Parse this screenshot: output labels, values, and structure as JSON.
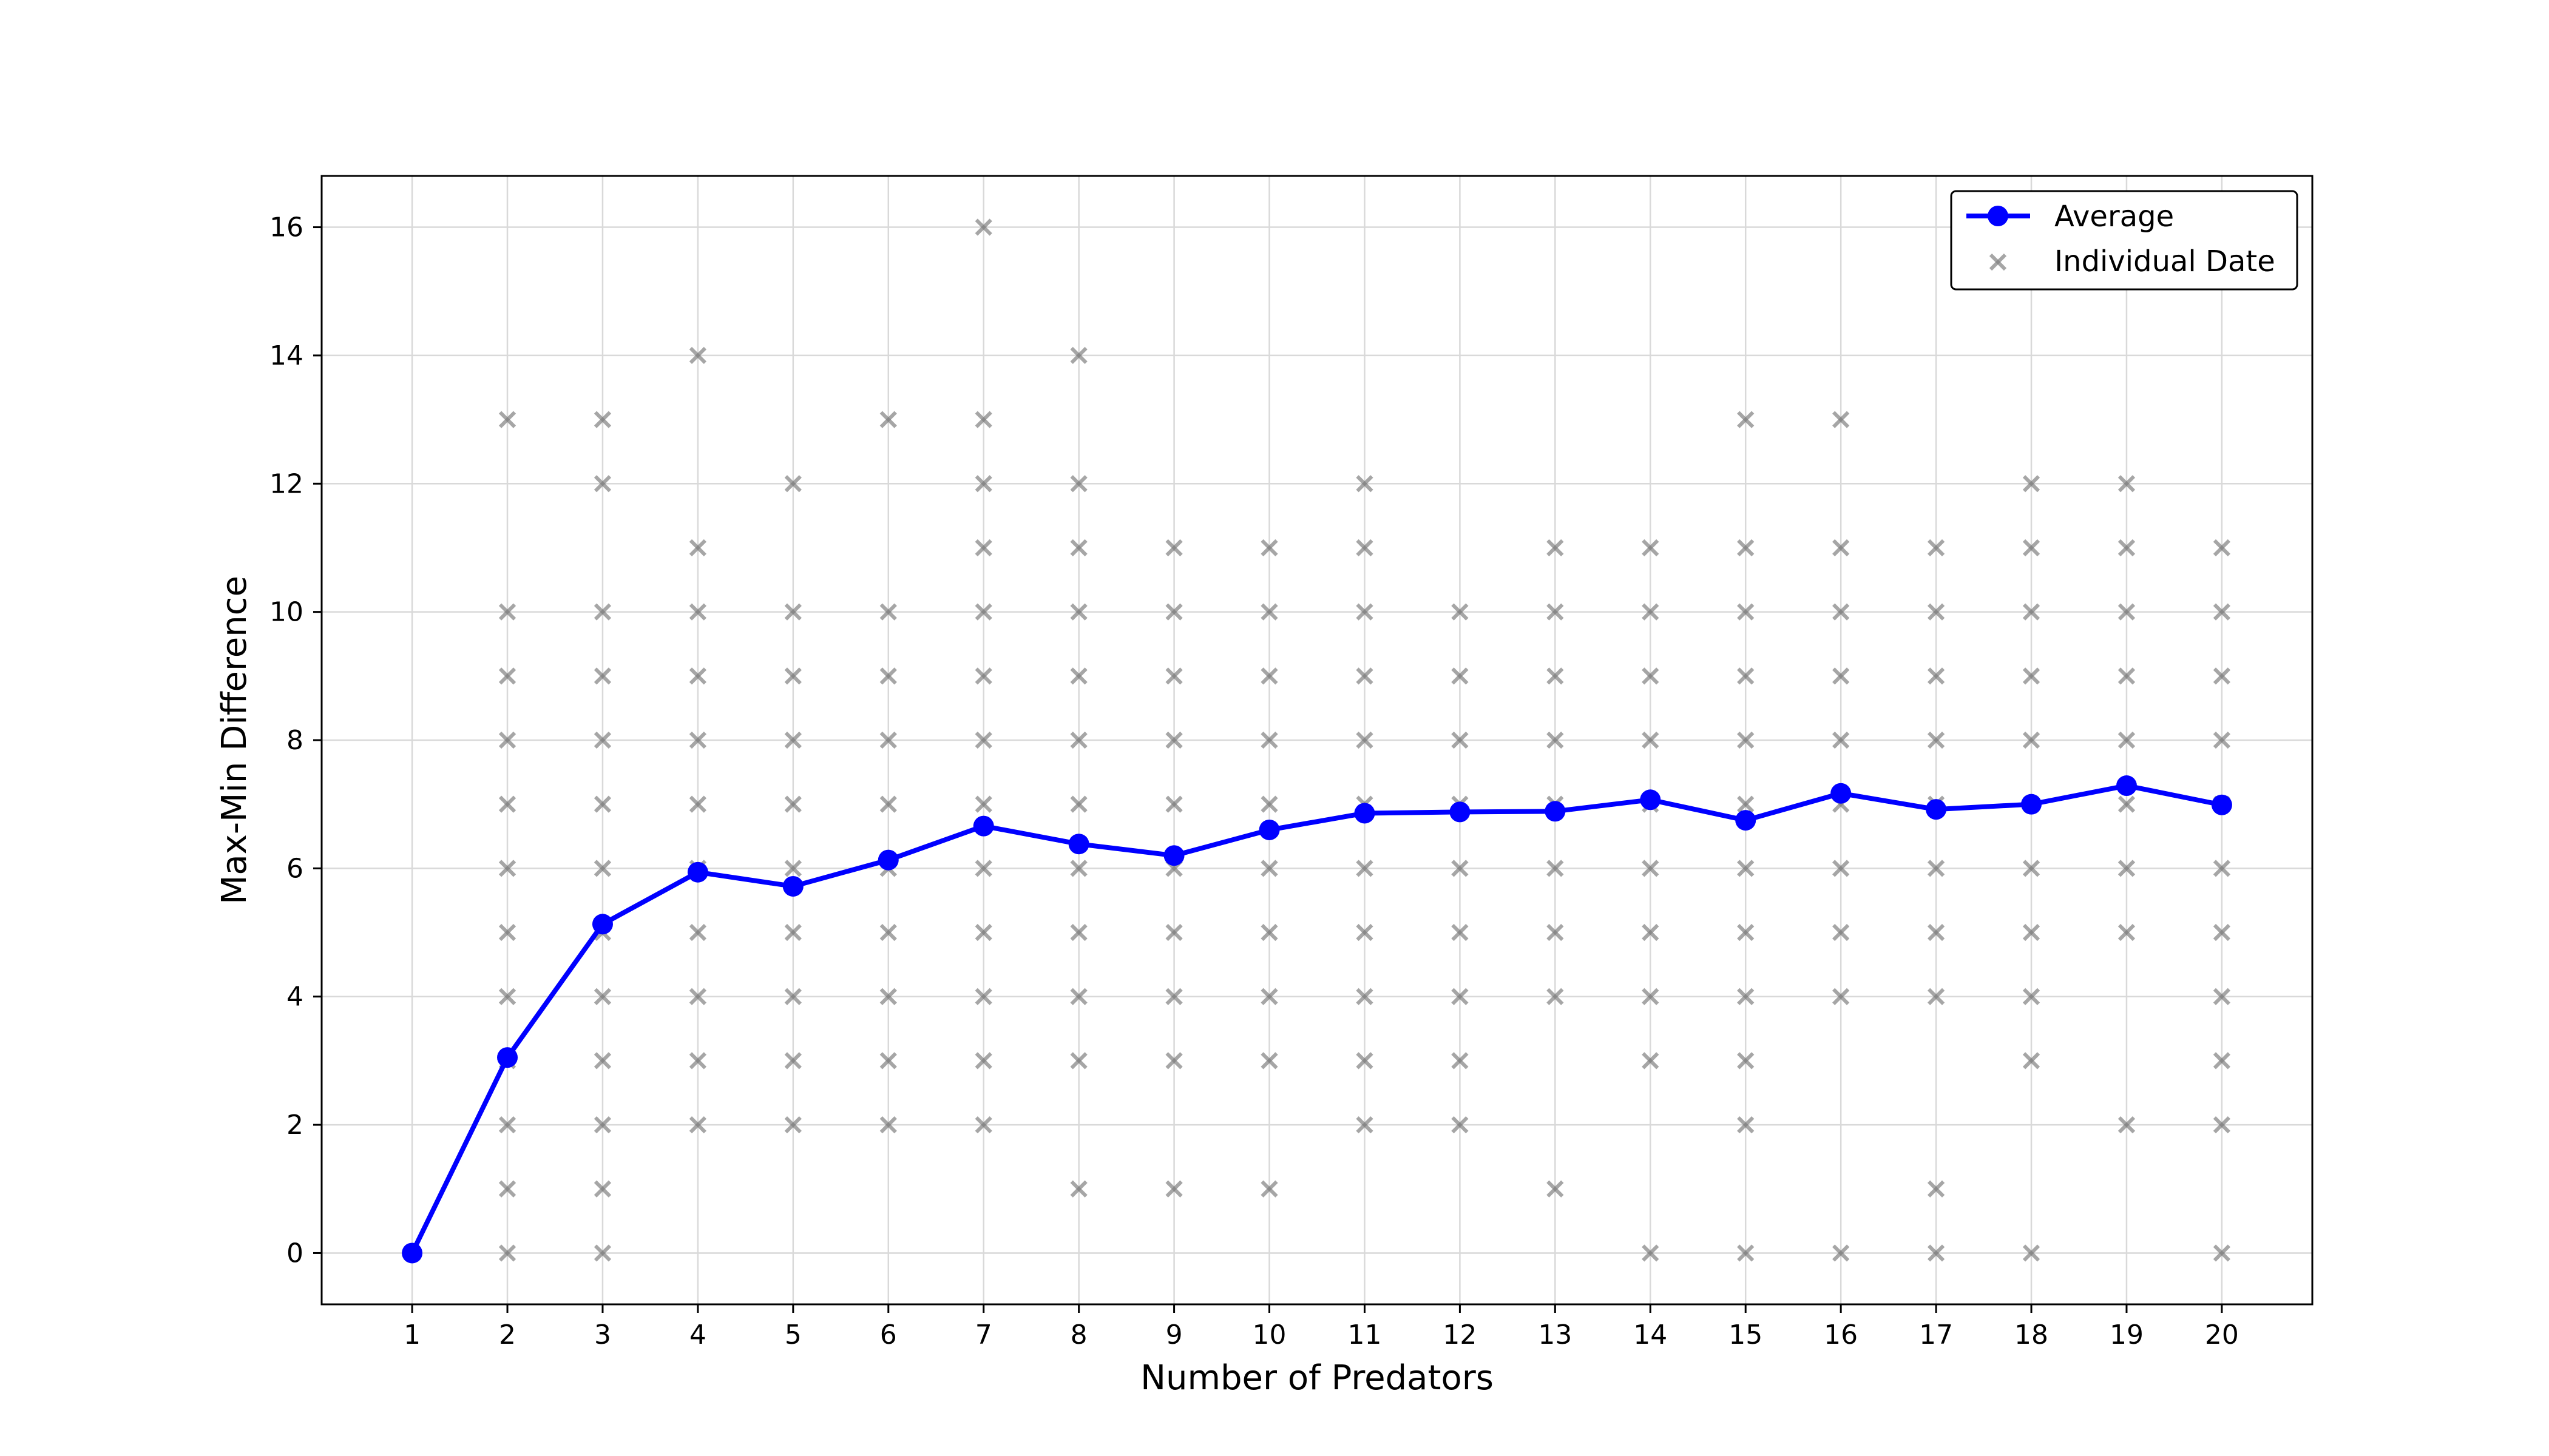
{
  "chart_data": {
    "type": "line",
    "title": "",
    "xlabel": "Number of Predators",
    "ylabel": "Max-Min Difference",
    "x_ticks": [
      1,
      2,
      3,
      4,
      5,
      6,
      7,
      8,
      9,
      10,
      11,
      12,
      13,
      14,
      15,
      16,
      17,
      18,
      19,
      20
    ],
    "y_ticks": [
      0,
      2,
      4,
      6,
      8,
      10,
      12,
      14,
      16
    ],
    "xlim": [
      0.05,
      20.95
    ],
    "ylim": [
      -0.8,
      16.8
    ],
    "grid": true,
    "legend_position": "top-right",
    "legend": {
      "average": "Average",
      "individual": "Individual Date"
    },
    "colors": {
      "average": "#0000ff",
      "individual": "#808080",
      "grid": "#d9d9d9",
      "axes": "#000000"
    },
    "series": [
      {
        "name": "Average",
        "style": "line-with-circles",
        "x": [
          1,
          2,
          3,
          4,
          5,
          6,
          7,
          8,
          9,
          10,
          11,
          12,
          13,
          14,
          15,
          16,
          17,
          18,
          19,
          20
        ],
        "y": [
          0,
          3.05,
          5.13,
          5.94,
          5.72,
          6.13,
          6.66,
          6.38,
          6.2,
          6.6,
          6.86,
          6.88,
          6.89,
          7.07,
          6.75,
          7.17,
          6.92,
          7.0,
          7.29,
          6.99
        ]
      },
      {
        "name": "Individual Date",
        "style": "x-markers",
        "points": [
          {
            "x": 1,
            "y": [
              0
            ]
          },
          {
            "x": 2,
            "y": [
              0,
              1,
              2,
              3,
              4,
              5,
              6,
              7,
              8,
              9,
              10,
              13
            ]
          },
          {
            "x": 3,
            "y": [
              0,
              1,
              2,
              3,
              4,
              5,
              6,
              7,
              8,
              9,
              10,
              12,
              13
            ]
          },
          {
            "x": 4,
            "y": [
              2,
              3,
              4,
              5,
              6,
              7,
              8,
              9,
              10,
              11,
              14
            ]
          },
          {
            "x": 5,
            "y": [
              2,
              3,
              4,
              5,
              6,
              7,
              8,
              9,
              10,
              12
            ]
          },
          {
            "x": 6,
            "y": [
              2,
              3,
              4,
              5,
              6,
              7,
              8,
              9,
              10,
              13
            ]
          },
          {
            "x": 7,
            "y": [
              2,
              3,
              4,
              5,
              6,
              7,
              8,
              9,
              10,
              11,
              12,
              13,
              16
            ]
          },
          {
            "x": 8,
            "y": [
              1,
              3,
              4,
              5,
              6,
              7,
              8,
              9,
              10,
              11,
              12,
              14
            ]
          },
          {
            "x": 9,
            "y": [
              1,
              3,
              4,
              5,
              6,
              7,
              8,
              9,
              10,
              11
            ]
          },
          {
            "x": 10,
            "y": [
              1,
              3,
              4,
              5,
              6,
              7,
              8,
              9,
              10,
              11
            ]
          },
          {
            "x": 11,
            "y": [
              2,
              3,
              4,
              5,
              6,
              7,
              8,
              9,
              10,
              11,
              12
            ]
          },
          {
            "x": 12,
            "y": [
              2,
              3,
              4,
              5,
              6,
              7,
              8,
              9,
              10
            ]
          },
          {
            "x": 13,
            "y": [
              1,
              4,
              5,
              6,
              7,
              8,
              9,
              10,
              11
            ]
          },
          {
            "x": 14,
            "y": [
              0,
              3,
              4,
              5,
              6,
              7,
              8,
              9,
              10,
              11
            ]
          },
          {
            "x": 15,
            "y": [
              0,
              2,
              3,
              4,
              5,
              6,
              7,
              8,
              9,
              10,
              11,
              13
            ]
          },
          {
            "x": 16,
            "y": [
              0,
              4,
              5,
              6,
              7,
              8,
              9,
              10,
              11,
              13
            ]
          },
          {
            "x": 17,
            "y": [
              0,
              1,
              4,
              5,
              6,
              7,
              8,
              9,
              10,
              11
            ]
          },
          {
            "x": 18,
            "y": [
              0,
              3,
              4,
              5,
              6,
              7,
              8,
              9,
              10,
              11,
              12
            ]
          },
          {
            "x": 19,
            "y": [
              2,
              5,
              6,
              7,
              8,
              9,
              10,
              11,
              12
            ]
          },
          {
            "x": 20,
            "y": [
              0,
              2,
              3,
              4,
              5,
              6,
              7,
              8,
              9,
              10,
              11
            ]
          }
        ]
      }
    ]
  }
}
